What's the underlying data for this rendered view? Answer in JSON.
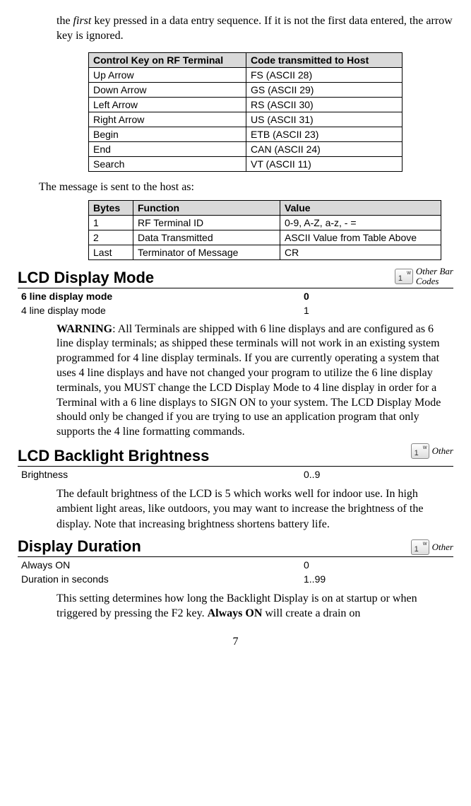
{
  "intro": {
    "prefix": "the ",
    "first_word": "first",
    "rest": " key pressed in a data entry sequence. If it is not the first data entered, the arrow key is ignored."
  },
  "table1": {
    "headers": [
      "Control Key on RF Terminal",
      "Code transmitted to Host"
    ],
    "rows": [
      [
        "Up Arrow",
        "FS (ASCII 28)"
      ],
      [
        "Down Arrow",
        "GS (ASCII 29)"
      ],
      [
        "Left Arrow",
        "RS (ASCII 30)"
      ],
      [
        "Right Arrow",
        "US (ASCII 31)"
      ],
      [
        "Begin",
        "ETB (ASCII 23)"
      ],
      [
        "End",
        "CAN (ASCII 24)"
      ],
      [
        "Search",
        "VT (ASCII 11)"
      ]
    ]
  },
  "message_sent_text": "The message is sent to the host as:",
  "table2": {
    "headers": [
      "Bytes",
      "Function",
      "Value"
    ],
    "rows": [
      [
        "1",
        "RF Terminal ID",
        "0-9, A-Z, a-z, - ="
      ],
      [
        "2",
        "Data Transmitted",
        "ASCII Value from Table Above"
      ],
      [
        "Last",
        "Terminator of Message",
        "CR"
      ]
    ]
  },
  "lcd_display": {
    "title": "LCD Display Mode",
    "icon_label": "Other Bar\nCodes",
    "rows": [
      {
        "label": "6 line display mode",
        "value": "0",
        "bold": true
      },
      {
        "label": "4 line display mode",
        "value": "1",
        "bold": false
      }
    ],
    "warning_label": "WARNING",
    "warning_text": ":  All Terminals are shipped with 6 line displays and are configured as 6 line display terminals; as shipped these terminals will not work in an existing system programmed for 4 line display terminals.  If you are currently operating a system that uses 4 line displays and have not changed your program to utilize the 6 line display terminals, you MUST change the LCD Display Mode to 4 line display in order for a Terminal with a 6 line displays to SIGN ON to your system.   The LCD Display Mode should only be changed if you are trying to use an application program that only supports the 4 line formatting commands."
  },
  "lcd_backlight": {
    "title": "LCD Backlight Brightness",
    "icon_label": "Other",
    "rows": [
      {
        "label": "Brightness",
        "value": "0..9",
        "bold": false
      }
    ],
    "para": "The default brightness of the LCD is 5 which works well for indoor use.  In high ambient light areas, like outdoors, you may want to increase the brightness of the display.  Note that increasing brightness shortens battery life."
  },
  "display_duration": {
    "title": "Display Duration",
    "icon_label": "Other",
    "rows": [
      {
        "label": "Always ON",
        "value": "0",
        "bold": false
      },
      {
        "label": "Duration in seconds",
        "value": "1..99",
        "bold": false
      }
    ],
    "para_prefix": "This setting determines how long the Backlight Display is on at startup or when triggered by pressing the F2 key.  ",
    "para_bold": "Always ON",
    "para_suffix": " will create a drain on"
  },
  "pagenum": "7"
}
